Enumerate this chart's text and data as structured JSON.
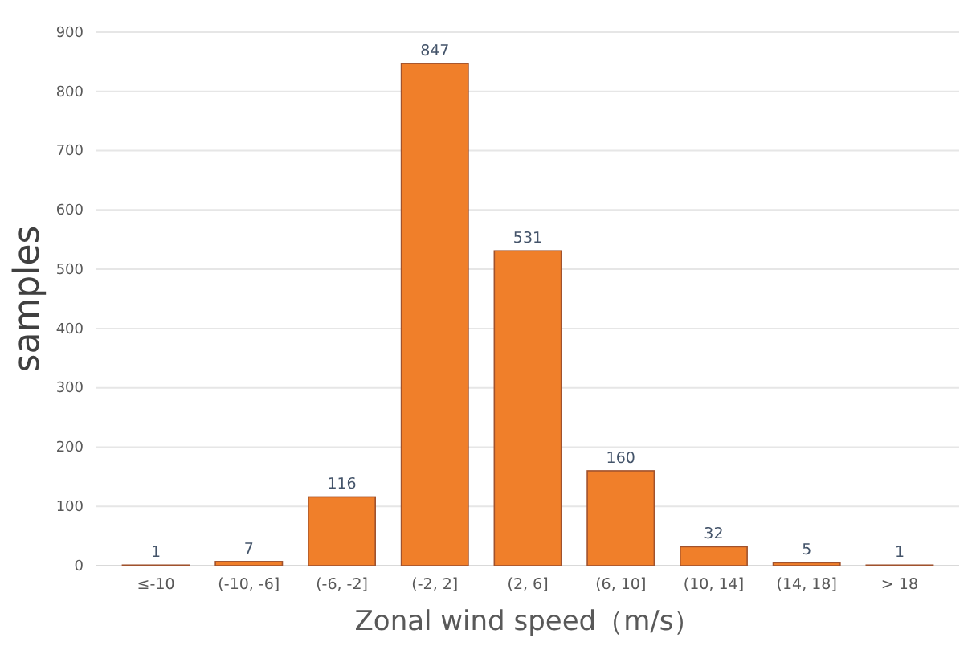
{
  "chart_data": {
    "type": "bar",
    "xlabel": "Zonal wind speed（m/s）",
    "ylabel": "samples",
    "categories": [
      "≤-10",
      "(-10,  -6]",
      "(-6,  -2]",
      "(-2,  2]",
      "(2,  6]",
      "(6,  10]",
      "(10,  14]",
      "(14,  18]",
      "> 18"
    ],
    "values": [
      1,
      7,
      116,
      847,
      531,
      160,
      32,
      5,
      1
    ],
    "color": "#f07f2a",
    "ylim": [
      0,
      900
    ],
    "yticks": [
      0,
      100,
      200,
      300,
      400,
      500,
      600,
      700,
      800,
      900
    ],
    "grid": "y",
    "data_labels": true
  }
}
